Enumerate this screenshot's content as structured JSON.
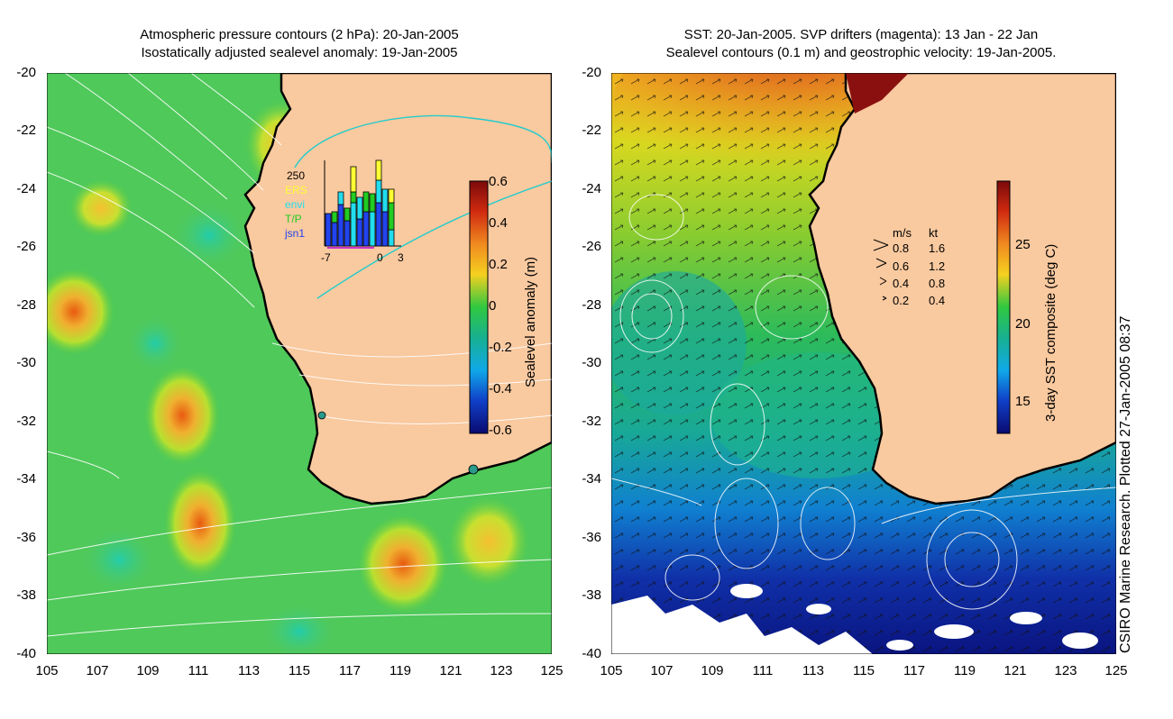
{
  "left_panel": {
    "title_line1": "Atmospheric pressure contours (2 hPa): 20-Jan-2005",
    "title_line2": "Isostatically adjusted sealevel anomaly: 19-Jan-2005",
    "y_ticks": [
      "-20",
      "-22",
      "-24",
      "-26",
      "-28",
      "-30",
      "-32",
      "-34",
      "-36",
      "-38",
      "-40"
    ],
    "x_ticks": [
      "105",
      "107",
      "109",
      "111",
      "113",
      "115",
      "117",
      "119",
      "121",
      "123",
      "125"
    ],
    "colorbar": {
      "label": "Sealevel anomaly (m)",
      "ticks": [
        "0.6",
        "0.4",
        "0.2",
        "0",
        "-0.2",
        "-0.4",
        "-0.6"
      ]
    },
    "inset": {
      "count_label": "250",
      "legend": [
        "ERS",
        "envi",
        "T/P",
        "jsn1"
      ],
      "legend_colors": [
        "#ffff33",
        "#22ddee",
        "#22cc22",
        "#2244ee"
      ],
      "x_ticks": [
        "-7",
        "0",
        "3"
      ]
    },
    "colors": {
      "ocean": "#33cc55",
      "land": "#f9c99f",
      "coast": "#000000"
    }
  },
  "right_panel": {
    "title_line1": "SST: 20-Jan-2005. SVP drifters (magenta): 13 Jan - 22 Jan",
    "title_line2": "Sealevel contours (0.1 m) and geostrophic velocity: 19-Jan-2005.",
    "y_ticks": [
      "-20",
      "-22",
      "-24",
      "-26",
      "-28",
      "-30",
      "-32",
      "-34",
      "-36",
      "-38",
      "-40"
    ],
    "x_ticks": [
      "105",
      "107",
      "109",
      "111",
      "113",
      "115",
      "117",
      "119",
      "121",
      "123",
      "125"
    ],
    "colorbar": {
      "label": "3-day SST composite (deg C)",
      "ticks": [
        "25",
        "20",
        "15"
      ]
    },
    "speed_legend": {
      "header_ms": "m/s",
      "header_kt": "kt",
      "rows": [
        {
          "ms": "0.8",
          "kt": "1.6"
        },
        {
          "ms": "0.6",
          "kt": "1.2"
        },
        {
          "ms": "0.4",
          "kt": "0.8"
        },
        {
          "ms": "0.2",
          "kt": "0.4"
        }
      ]
    }
  },
  "credit": "CSIRO Marine Research. Plotted 27-Jan-2005 08:37"
}
